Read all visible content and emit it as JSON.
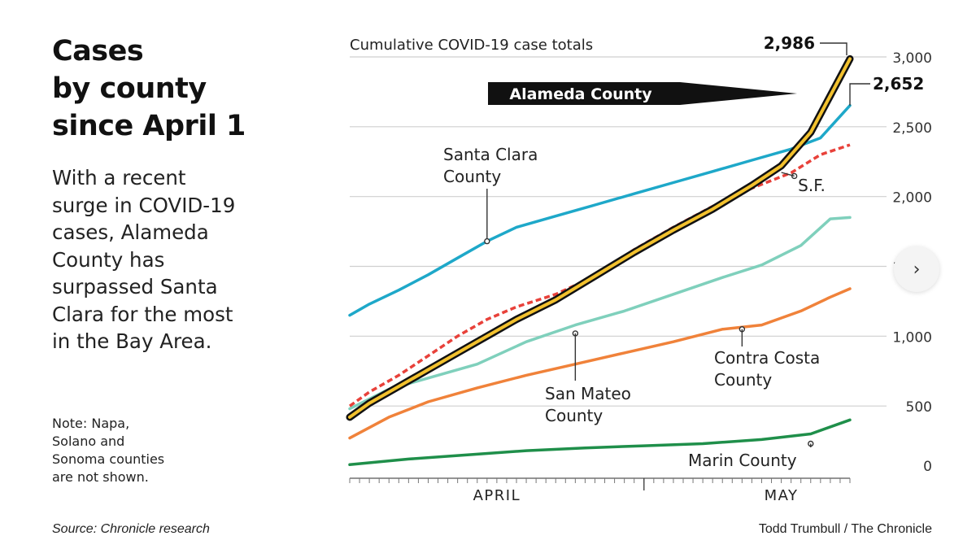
{
  "headline": {
    "lines": [
      "Cases",
      "by county",
      "since April 1"
    ]
  },
  "dek": {
    "lines": [
      "With a recent",
      "surge in COVID-19",
      "cases, Alameda",
      "County has",
      "surpassed Santa",
      "Clara for the most",
      "in the Bay Area."
    ]
  },
  "note": {
    "lines": [
      "Note: Napa,",
      "Solano and",
      "Sonoma counties",
      "are not shown."
    ]
  },
  "source": "Source: Chronicle research",
  "credit": "Todd Trumbull / The Chronicle",
  "next_button": {
    "icon": "chevron-right-icon",
    "glyph": "›"
  },
  "chart_data": {
    "type": "line",
    "title": "Cumulative COVID-19 case totals",
    "x_start": "2020-04-01",
    "x_end": "2020-05-22",
    "ylim": [
      0,
      3000
    ],
    "yticks": [
      0,
      500,
      1000,
      1500,
      2000,
      2500,
      3000
    ],
    "ytick_labels": [
      "0",
      "500",
      "1,000",
      "1,500",
      "2,000",
      "2,500",
      "3,000"
    ],
    "month_labels": [
      {
        "label": "APRIL",
        "date": "2020-04-16"
      },
      {
        "label": "MAY",
        "date": "2020-05-15"
      }
    ],
    "month_divider": "2020-05-01",
    "grid": true,
    "series": [
      {
        "name": "Santa Clara County",
        "label_lines": [
          "Santa Clara",
          "County"
        ],
        "color": "#1ea8c9",
        "points": [
          [
            "2020-04-01",
            1150
          ],
          [
            "2020-04-03",
            1230
          ],
          [
            "2020-04-06",
            1330
          ],
          [
            "2020-04-09",
            1440
          ],
          [
            "2020-04-12",
            1560
          ],
          [
            "2020-04-15",
            1680
          ],
          [
            "2020-04-18",
            1780
          ],
          [
            "2020-04-22",
            1860
          ],
          [
            "2020-04-26",
            1940
          ],
          [
            "2020-04-30",
            2020
          ],
          [
            "2020-05-04",
            2100
          ],
          [
            "2020-05-08",
            2180
          ],
          [
            "2020-05-12",
            2260
          ],
          [
            "2020-05-16",
            2340
          ],
          [
            "2020-05-19",
            2420
          ],
          [
            "2020-05-22",
            2652
          ]
        ]
      },
      {
        "name": "Alameda County",
        "label_lines": [
          "Alameda County"
        ],
        "color": "#f2c12e",
        "highlight": true,
        "end_label": "2,986",
        "points": [
          [
            "2020-04-01",
            420
          ],
          [
            "2020-04-03",
            520
          ],
          [
            "2020-04-06",
            640
          ],
          [
            "2020-04-09",
            760
          ],
          [
            "2020-04-12",
            880
          ],
          [
            "2020-04-15",
            1000
          ],
          [
            "2020-04-18",
            1120
          ],
          [
            "2020-04-22",
            1260
          ],
          [
            "2020-04-26",
            1430
          ],
          [
            "2020-04-30",
            1600
          ],
          [
            "2020-05-04",
            1760
          ],
          [
            "2020-05-08",
            1910
          ],
          [
            "2020-05-12",
            2080
          ],
          [
            "2020-05-15",
            2220
          ],
          [
            "2020-05-18",
            2460
          ],
          [
            "2020-05-22",
            2986
          ]
        ]
      },
      {
        "name": "S.F.",
        "label_lines": [
          "S.F."
        ],
        "color": "#e8413a",
        "dashed": true,
        "points": [
          [
            "2020-04-01",
            500
          ],
          [
            "2020-04-03",
            600
          ],
          [
            "2020-04-06",
            720
          ],
          [
            "2020-04-09",
            860
          ],
          [
            "2020-04-12",
            1000
          ],
          [
            "2020-04-15",
            1120
          ],
          [
            "2020-04-18",
            1210
          ],
          [
            "2020-04-22",
            1300
          ],
          [
            "2020-04-26",
            1430
          ],
          [
            "2020-04-30",
            1620
          ],
          [
            "2020-05-04",
            1780
          ],
          [
            "2020-05-08",
            1930
          ],
          [
            "2020-05-12",
            2060
          ],
          [
            "2020-05-16",
            2170
          ],
          [
            "2020-05-19",
            2300
          ],
          [
            "2020-05-22",
            2370
          ]
        ]
      },
      {
        "name": "San Mateo County",
        "label_lines": [
          "San Mateo",
          "County"
        ],
        "color": "#7fd0bc",
        "points": [
          [
            "2020-04-01",
            480
          ],
          [
            "2020-04-05",
            620
          ],
          [
            "2020-04-09",
            700
          ],
          [
            "2020-04-14",
            800
          ],
          [
            "2020-04-19",
            960
          ],
          [
            "2020-04-24",
            1080
          ],
          [
            "2020-04-29",
            1180
          ],
          [
            "2020-05-04",
            1300
          ],
          [
            "2020-05-09",
            1420
          ],
          [
            "2020-05-13",
            1510
          ],
          [
            "2020-05-17",
            1650
          ],
          [
            "2020-05-20",
            1840
          ],
          [
            "2020-05-22",
            1850
          ]
        ]
      },
      {
        "name": "Contra Costa County",
        "label_lines": [
          "Contra Costa",
          "County"
        ],
        "color": "#f0823a",
        "points": [
          [
            "2020-04-01",
            270
          ],
          [
            "2020-04-05",
            420
          ],
          [
            "2020-04-09",
            530
          ],
          [
            "2020-04-14",
            630
          ],
          [
            "2020-04-19",
            720
          ],
          [
            "2020-04-24",
            800
          ],
          [
            "2020-04-29",
            880
          ],
          [
            "2020-05-04",
            960
          ],
          [
            "2020-05-09",
            1050
          ],
          [
            "2020-05-13",
            1080
          ],
          [
            "2020-05-17",
            1180
          ],
          [
            "2020-05-20",
            1280
          ],
          [
            "2020-05-22",
            1340
          ]
        ]
      },
      {
        "name": "Marin County",
        "label_lines": [
          "Marin County"
        ],
        "color": "#1f8f4a",
        "points": [
          [
            "2020-04-01",
            80
          ],
          [
            "2020-04-07",
            120
          ],
          [
            "2020-04-13",
            150
          ],
          [
            "2020-04-19",
            180
          ],
          [
            "2020-04-25",
            200
          ],
          [
            "2020-05-01",
            215
          ],
          [
            "2020-05-07",
            230
          ],
          [
            "2020-05-13",
            260
          ],
          [
            "2020-05-18",
            300
          ],
          [
            "2020-05-22",
            400
          ]
        ]
      }
    ]
  }
}
